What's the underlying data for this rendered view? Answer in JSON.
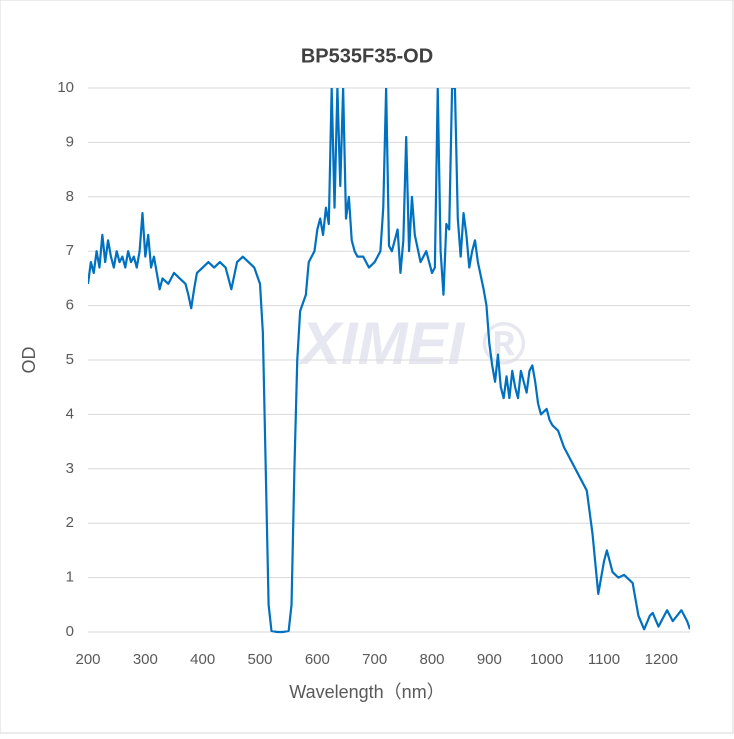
{
  "chart_data": {
    "type": "line",
    "title": "BP535F35-OD",
    "x_label": "Wavelength（nm）",
    "y_label": "OD",
    "watermark": "XIMEI ®",
    "x": [
      200,
      205,
      210,
      215,
      220,
      225,
      230,
      235,
      240,
      245,
      250,
      255,
      260,
      265,
      270,
      275,
      280,
      285,
      290,
      295,
      300,
      305,
      310,
      315,
      320,
      325,
      330,
      340,
      350,
      360,
      370,
      375,
      380,
      385,
      390,
      400,
      410,
      420,
      430,
      440,
      450,
      460,
      470,
      480,
      490,
      500,
      505,
      510,
      515,
      520,
      530,
      540,
      550,
      555,
      560,
      565,
      570,
      580,
      585,
      590,
      595,
      600,
      605,
      610,
      615,
      620,
      625,
      630,
      635,
      640,
      645,
      650,
      655,
      660,
      665,
      670,
      680,
      690,
      700,
      710,
      715,
      720,
      725,
      730,
      740,
      745,
      750,
      755,
      760,
      765,
      770,
      780,
      790,
      800,
      805,
      810,
      815,
      820,
      825,
      830,
      835,
      840,
      845,
      850,
      855,
      860,
      865,
      870,
      875,
      880,
      890,
      895,
      900,
      905,
      910,
      915,
      920,
      925,
      930,
      935,
      940,
      945,
      950,
      955,
      960,
      965,
      970,
      975,
      980,
      985,
      990,
      1000,
      1005,
      1010,
      1020,
      1030,
      1040,
      1050,
      1060,
      1070,
      1080,
      1090,
      1100,
      1105,
      1115,
      1125,
      1135,
      1145,
      1150,
      1160,
      1170,
      1180,
      1185,
      1195,
      1210,
      1220,
      1235,
      1245,
      1250
    ],
    "series": [
      {
        "name": "OD",
        "color": "#0070c0",
        "values": [
          6.4,
          6.8,
          6.6,
          7.0,
          6.7,
          7.3,
          6.8,
          7.2,
          6.9,
          6.7,
          7.0,
          6.8,
          6.9,
          6.7,
          7.0,
          6.8,
          6.9,
          6.7,
          7.0,
          7.7,
          6.9,
          7.3,
          6.7,
          6.9,
          6.6,
          6.3,
          6.5,
          6.4,
          6.6,
          6.5,
          6.4,
          6.2,
          5.95,
          6.3,
          6.6,
          6.7,
          6.8,
          6.7,
          6.8,
          6.7,
          6.3,
          6.8,
          6.9,
          6.8,
          6.7,
          6.4,
          5.5,
          3.0,
          0.5,
          0.02,
          0,
          0,
          0.02,
          0.5,
          3.0,
          5.0,
          5.9,
          6.2,
          6.8,
          6.9,
          7.0,
          7.4,
          7.6,
          7.3,
          7.8,
          7.5,
          10,
          7.8,
          10,
          8.2,
          10,
          7.6,
          8.0,
          7.2,
          7.0,
          6.9,
          6.9,
          6.7,
          6.8,
          7.0,
          7.8,
          10,
          7.1,
          7.0,
          7.4,
          6.6,
          7.2,
          9.1,
          7.0,
          8.0,
          7.3,
          6.8,
          7.0,
          6.6,
          6.7,
          10,
          7.0,
          6.2,
          7.5,
          7.4,
          10,
          10,
          7.6,
          6.9,
          7.7,
          7.3,
          6.7,
          7.0,
          7.2,
          6.8,
          6.3,
          6.0,
          5.3,
          4.9,
          4.6,
          5.1,
          4.5,
          4.3,
          4.7,
          4.3,
          4.8,
          4.5,
          4.3,
          4.8,
          4.6,
          4.4,
          4.8,
          4.9,
          4.6,
          4.2,
          4.0,
          4.1,
          3.9,
          3.8,
          3.7,
          3.4,
          3.2,
          3.0,
          2.8,
          2.6,
          1.8,
          0.7,
          1.3,
          1.5,
          1.1,
          1.0,
          1.05,
          0.95,
          0.9,
          0.3,
          0.05,
          0.3,
          0.35,
          0.1,
          0.4,
          0.2,
          0.4,
          0.2,
          0.05
        ]
      }
    ],
    "xlim": [
      200,
      1250
    ],
    "xticks": [
      200,
      300,
      400,
      500,
      600,
      700,
      800,
      900,
      1000,
      1100,
      1200
    ],
    "ylim": [
      0,
      10
    ],
    "yticks": [
      0,
      1,
      2,
      3,
      4,
      5,
      6,
      7,
      8,
      9,
      10
    ],
    "grid": true
  }
}
